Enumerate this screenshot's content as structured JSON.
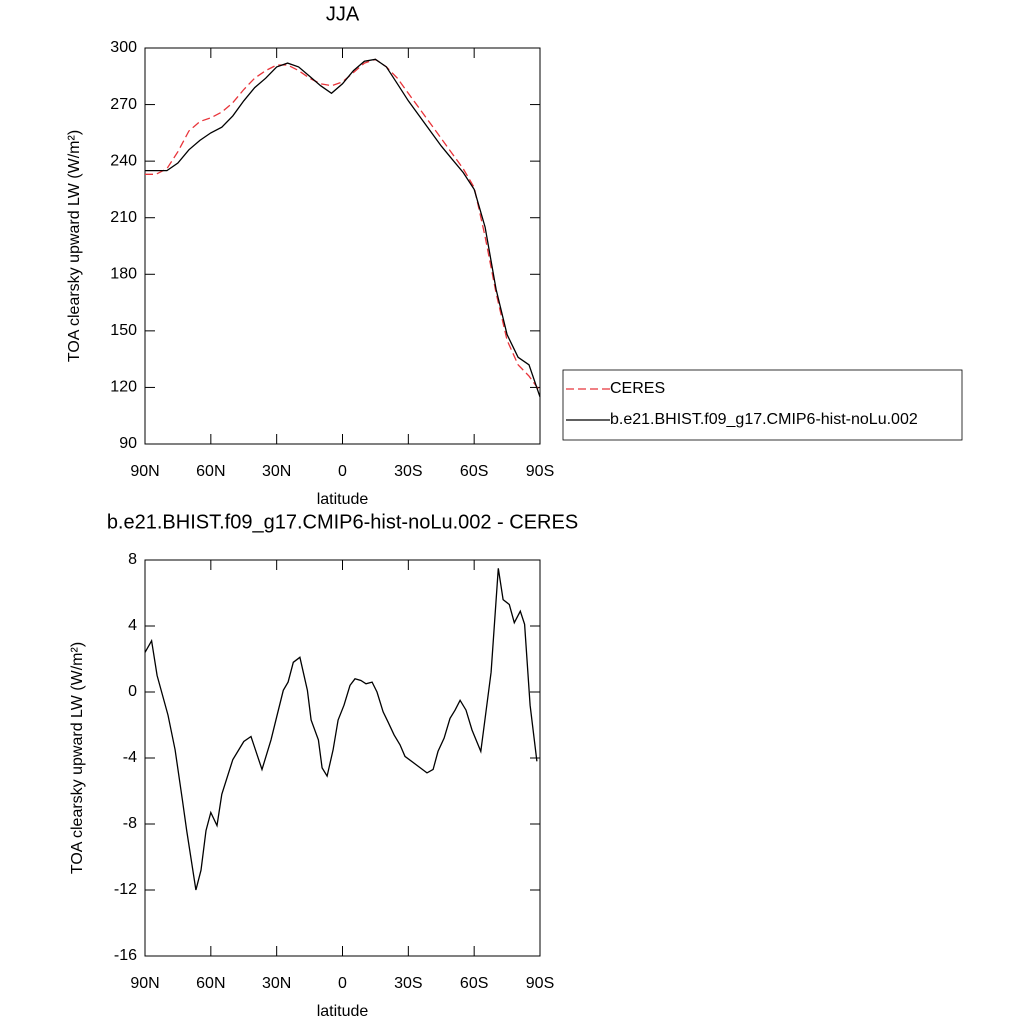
{
  "chart_data": [
    {
      "type": "line",
      "title": "JJA",
      "x_label": "latitude",
      "y_label": "TOA clearsky upward LW (W/m²)",
      "x": [
        90,
        85,
        80,
        75,
        70,
        65,
        60,
        55,
        50,
        45,
        40,
        35,
        30,
        25,
        20,
        15,
        10,
        5,
        0,
        -5,
        -10,
        -15,
        -20,
        -25,
        -30,
        -35,
        -40,
        -45,
        -50,
        -55,
        -60,
        -65,
        -70,
        -75,
        -80,
        -85,
        -90
      ],
      "series": [
        {
          "name": "CERES",
          "color": "#e8343a",
          "line_style": "dashed",
          "values": [
            233,
            233,
            236,
            245,
            256,
            261,
            263,
            266,
            271,
            278,
            284,
            288,
            291,
            291,
            288,
            284,
            281,
            280,
            282,
            287,
            292,
            294,
            290,
            284,
            276,
            268,
            260,
            252,
            244,
            236,
            226,
            200,
            170,
            145,
            132,
            126,
            118
          ]
        },
        {
          "name": "b.e21.BHIST.f09_g17.CMIP6-hist-noLu.002",
          "color": "#000000",
          "line_style": "solid",
          "values": [
            235,
            235,
            235,
            239,
            246,
            251,
            255,
            258,
            264,
            272,
            279,
            284,
            290,
            292,
            290,
            285,
            280,
            276,
            281,
            288,
            293,
            294,
            290,
            281,
            272,
            264,
            256,
            248,
            241,
            234,
            225,
            205,
            172,
            148,
            136,
            132,
            115
          ]
        }
      ],
      "xlim": [
        90,
        -90
      ],
      "xticks": [
        {
          "value": 90,
          "label": "90N"
        },
        {
          "value": 60,
          "label": "60N"
        },
        {
          "value": 30,
          "label": "30N"
        },
        0,
        {
          "value": -30,
          "label": "30S"
        },
        {
          "value": -60,
          "label": "60S"
        },
        {
          "value": -90,
          "label": "90S"
        }
      ],
      "ylim": [
        90,
        300
      ],
      "yticks": [
        90,
        120,
        150,
        180,
        210,
        240,
        270,
        300
      ],
      "legend": "outside-right"
    },
    {
      "type": "line",
      "title": "b.e21.BHIST.f09_g17.CMIP6-hist-noLu.002 - CERES",
      "x_label": "latitude",
      "y_label": "TOA clearsky upward LW (W/m²)",
      "x": [
        90,
        87,
        84.5,
        79.5,
        76.3,
        73,
        71,
        66.8,
        64.5,
        62.2,
        60,
        57.2,
        55,
        50,
        45,
        41.7,
        36.7,
        32.6,
        30,
        27,
        24.8,
        22.4,
        19.4,
        16,
        14.3,
        11,
        9.3,
        7,
        4.3,
        2,
        -0.7,
        -3.4,
        -5.7,
        -8.4,
        -10.7,
        -13.5,
        -15.7,
        -18.5,
        -20.7,
        -23.5,
        -26.2,
        -28.5,
        -33.5,
        -38.5,
        -41.3,
        -43.5,
        -46.3,
        -49,
        -51.3,
        -53.6,
        -56.3,
        -59,
        -63,
        -65,
        -67.7,
        -71,
        -73.2,
        -76,
        -78.3,
        -81,
        -83,
        -85.5,
        -88.6
      ],
      "series": [
        {
          "name": null,
          "color": "#000000",
          "line_style": "solid",
          "values": [
            2.4,
            3.1,
            1.0,
            -1.4,
            -3.5,
            -6.5,
            -8.4,
            -12.0,
            -10.8,
            -8.4,
            -7.3,
            -8.1,
            -6.2,
            -4.1,
            -3.0,
            -2.7,
            -4.7,
            -2.9,
            -1.5,
            0.1,
            0.6,
            1.8,
            2.1,
            0.1,
            -1.7,
            -2.9,
            -4.6,
            -5.1,
            -3.5,
            -1.7,
            -0.8,
            0.4,
            0.8,
            0.7,
            0.5,
            0.6,
            0.0,
            -1.2,
            -1.8,
            -2.6,
            -3.2,
            -3.9,
            -4.4,
            -4.9,
            -4.7,
            -3.6,
            -2.8,
            -1.6,
            -1.1,
            -0.5,
            -1.1,
            -2.3,
            -3.6,
            -1.6,
            1.2,
            7.5,
            5.6,
            5.3,
            4.2,
            4.9,
            4.1,
            -0.8,
            -4.2
          ]
        }
      ],
      "xlim": [
        90,
        -90
      ],
      "xticks": [
        {
          "value": 90,
          "label": "90N"
        },
        {
          "value": 60,
          "label": "60N"
        },
        {
          "value": 30,
          "label": "30N"
        },
        0,
        {
          "value": -30,
          "label": "30S"
        },
        {
          "value": -60,
          "label": "60S"
        },
        {
          "value": -90,
          "label": "90S"
        }
      ],
      "ylim": [
        -16,
        8
      ],
      "yticks": [
        -16,
        -12,
        -8,
        -4,
        0,
        4,
        8
      ]
    }
  ]
}
